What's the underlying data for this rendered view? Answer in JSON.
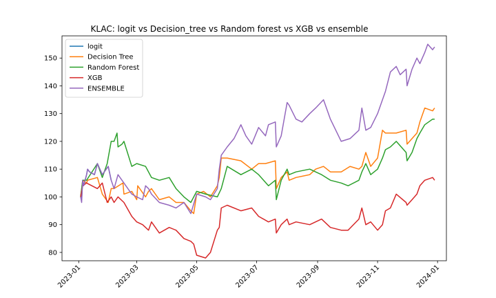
{
  "chart_data": {
    "type": "line",
    "title": "KLAC: logit vs Decision_tree vs Random forest vs XGB vs ensemble",
    "xlabel": "",
    "ylabel": "",
    "grid": false,
    "legend_placement": "top-left",
    "xlim": [
      "2022-12-15",
      "2024-01-10"
    ],
    "ylim": [
      77,
      158
    ],
    "x_ticks": [
      "2023-01-01",
      "2023-03-01",
      "2023-05-01",
      "2023-07-01",
      "2023-09-01",
      "2023-11-01",
      "2024-01-01"
    ],
    "x_tick_labels": [
      "2023-01",
      "2023-03",
      "2023-05",
      "2023-07",
      "2023-09",
      "2023-11",
      "2024-01"
    ],
    "y_ticks": [
      80,
      90,
      100,
      110,
      120,
      130,
      140,
      150
    ],
    "series": [
      {
        "name": "logit",
        "color": "#1f77b4",
        "x": [
          "2023-01-03",
          "2023-01-04",
          "2023-01-05",
          "2023-01-06",
          "2023-01-09",
          "2023-01-10",
          "2023-01-12",
          "2023-01-17",
          "2023-01-20",
          "2023-01-25",
          "2023-01-31",
          "2023-02-03"
        ],
        "y": [
          100,
          99,
          106,
          104,
          108,
          110,
          109,
          108,
          112,
          108,
          111,
          106
        ]
      },
      {
        "name": "Decision Tree",
        "color": "#ff7f0e",
        "x": [
          "2023-01-03",
          "2023-01-05",
          "2023-01-09",
          "2023-01-10",
          "2023-01-20",
          "2023-01-25",
          "2023-01-31",
          "2023-02-03",
          "2023-02-06",
          "2023-02-15",
          "2023-02-16",
          "2023-02-24",
          "2023-03-01",
          "2023-03-02",
          "2023-03-10",
          "2023-03-13",
          "2023-03-16",
          "2023-03-24",
          "2023-04-03",
          "2023-04-10",
          "2023-04-18",
          "2023-04-25",
          "2023-04-28",
          "2023-05-01",
          "2023-05-08",
          "2023-05-15",
          "2023-05-22",
          "2023-05-24",
          "2023-05-26",
          "2023-06-01",
          "2023-06-15",
          "2023-06-26",
          "2023-07-03",
          "2023-07-10",
          "2023-07-20",
          "2023-07-21",
          "2023-07-26",
          "2023-08-01",
          "2023-08-03",
          "2023-08-10",
          "2023-08-24",
          "2023-08-30",
          "2023-09-07",
          "2023-09-14",
          "2023-09-25",
          "2023-10-04",
          "2023-10-13",
          "2023-10-16",
          "2023-10-20",
          "2023-10-25",
          "2023-11-01",
          "2023-11-06",
          "2023-11-09",
          "2023-11-20",
          "2023-11-30",
          "2023-12-01",
          "2023-12-06",
          "2023-12-11",
          "2023-12-14",
          "2023-12-19",
          "2023-12-27",
          "2023-12-29"
        ],
        "y": [
          100,
          106,
          105,
          106,
          107,
          101,
          98,
          103,
          103,
          105,
          101,
          102,
          99,
          104,
          100,
          102,
          103,
          99,
          100,
          98,
          98,
          95,
          94,
          101,
          102,
          100,
          104,
          107,
          114,
          114,
          113,
          110,
          112,
          112,
          113,
          103,
          107,
          109,
          106,
          107,
          108,
          110,
          111,
          109,
          109,
          111,
          110,
          111,
          116,
          111,
          114,
          124,
          123,
          123,
          124,
          119,
          121,
          123,
          127,
          132,
          131,
          132
        ]
      },
      {
        "name": "Random Forest",
        "color": "#2ca02c",
        "x": [
          "2023-01-03",
          "2023-01-05",
          "2023-01-09",
          "2023-01-20",
          "2023-01-25",
          "2023-01-30",
          "2023-02-03",
          "2023-02-06",
          "2023-02-09",
          "2023-02-10",
          "2023-02-14",
          "2023-02-16",
          "2023-02-24",
          "2023-03-01",
          "2023-03-10",
          "2023-03-16",
          "2023-03-24",
          "2023-04-03",
          "2023-04-10",
          "2023-04-18",
          "2023-04-25",
          "2023-05-01",
          "2023-05-10",
          "2023-05-22",
          "2023-05-26",
          "2023-06-01",
          "2023-06-15",
          "2023-06-26",
          "2023-07-03",
          "2023-07-13",
          "2023-07-20",
          "2023-07-21",
          "2023-07-26",
          "2023-08-01",
          "2023-08-03",
          "2023-08-10",
          "2023-08-24",
          "2023-09-05",
          "2023-09-14",
          "2023-09-25",
          "2023-10-02",
          "2023-10-13",
          "2023-10-16",
          "2023-10-20",
          "2023-10-25",
          "2023-11-01",
          "2023-11-06",
          "2023-11-09",
          "2023-11-14",
          "2023-11-20",
          "2023-11-30",
          "2023-12-01",
          "2023-12-06",
          "2023-12-11",
          "2023-12-14",
          "2023-12-19",
          "2023-12-27",
          "2023-12-29"
        ],
        "y": [
          100,
          106,
          106,
          112,
          107,
          112,
          120,
          120,
          123,
          118,
          119,
          120,
          111,
          112,
          111,
          107,
          106,
          107,
          103,
          100,
          98,
          102,
          101,
          100,
          103,
          111,
          108,
          110,
          108,
          104,
          106,
          99,
          106,
          110,
          108,
          109,
          110,
          108,
          106,
          105,
          104,
          106,
          109,
          112,
          108,
          110,
          114,
          117,
          118,
          120,
          116,
          113,
          116,
          121,
          123,
          126,
          128,
          128
        ]
      },
      {
        "name": "XGB",
        "color": "#d62728",
        "x": [
          "2023-01-03",
          "2023-01-05",
          "2023-01-09",
          "2023-01-20",
          "2023-01-25",
          "2023-01-30",
          "2023-02-03",
          "2023-02-06",
          "2023-02-10",
          "2023-02-16",
          "2023-02-24",
          "2023-03-01",
          "2023-03-07",
          "2023-03-13",
          "2023-03-16",
          "2023-03-24",
          "2023-04-03",
          "2023-04-10",
          "2023-04-18",
          "2023-04-25",
          "2023-04-28",
          "2023-05-01",
          "2023-05-10",
          "2023-05-15",
          "2023-05-22",
          "2023-05-24",
          "2023-05-26",
          "2023-06-01",
          "2023-06-15",
          "2023-06-26",
          "2023-07-03",
          "2023-07-13",
          "2023-07-20",
          "2023-07-21",
          "2023-07-26",
          "2023-08-01",
          "2023-08-03",
          "2023-08-10",
          "2023-08-24",
          "2023-09-05",
          "2023-09-14",
          "2023-09-25",
          "2023-10-02",
          "2023-10-13",
          "2023-10-16",
          "2023-10-20",
          "2023-10-25",
          "2023-11-01",
          "2023-11-06",
          "2023-11-09",
          "2023-11-14",
          "2023-11-20",
          "2023-11-30",
          "2023-12-01",
          "2023-12-06",
          "2023-12-11",
          "2023-12-14",
          "2023-12-19",
          "2023-12-27",
          "2023-12-29"
        ],
        "y": [
          100,
          104,
          105,
          103,
          105,
          98,
          100,
          98,
          100,
          98,
          93,
          91,
          90,
          88,
          91,
          87,
          89,
          88,
          85,
          84,
          83,
          79,
          78,
          80,
          88,
          89,
          96,
          97,
          95,
          96,
          93,
          91,
          92,
          87,
          90,
          92,
          90,
          91,
          90,
          92,
          89,
          88,
          88,
          92,
          96,
          90,
          91,
          88,
          90,
          95,
          96,
          101,
          98,
          97,
          99,
          101,
          104,
          106,
          107,
          106
        ]
      },
      {
        "name": "ENSEMBLE",
        "color": "#9467bd",
        "x": [
          "2023-01-03",
          "2023-01-04",
          "2023-01-05",
          "2023-01-06",
          "2023-01-09",
          "2023-01-10",
          "2023-01-12",
          "2023-01-17",
          "2023-01-20",
          "2023-01-25",
          "2023-01-31",
          "2023-02-03",
          "2023-02-06",
          "2023-02-10",
          "2023-02-16",
          "2023-02-24",
          "2023-03-01",
          "2023-03-07",
          "2023-03-10",
          "2023-03-13",
          "2023-03-16",
          "2023-03-24",
          "2023-04-03",
          "2023-04-10",
          "2023-04-18",
          "2023-04-25",
          "2023-05-01",
          "2023-05-10",
          "2023-05-15",
          "2023-05-22",
          "2023-05-24",
          "2023-05-26",
          "2023-06-01",
          "2023-06-08",
          "2023-06-15",
          "2023-06-20",
          "2023-06-26",
          "2023-07-03",
          "2023-07-10",
          "2023-07-13",
          "2023-07-20",
          "2023-07-21",
          "2023-07-26",
          "2023-08-01",
          "2023-08-03",
          "2023-08-10",
          "2023-08-16",
          "2023-08-24",
          "2023-08-30",
          "2023-09-07",
          "2023-09-14",
          "2023-09-25",
          "2023-10-04",
          "2023-10-13",
          "2023-10-16",
          "2023-10-20",
          "2023-10-25",
          "2023-11-01",
          "2023-11-06",
          "2023-11-09",
          "2023-11-14",
          "2023-11-20",
          "2023-11-24",
          "2023-11-30",
          "2023-12-01",
          "2023-12-06",
          "2023-12-11",
          "2023-12-14",
          "2023-12-19",
          "2023-12-22",
          "2023-12-27",
          "2023-12-29"
        ],
        "y": [
          100,
          98,
          106,
          104,
          108,
          110,
          109,
          108,
          112,
          108,
          111,
          106,
          103,
          108,
          105,
          101,
          100,
          99,
          104,
          103,
          101,
          98,
          97,
          96,
          98,
          94,
          101,
          100,
          99,
          103,
          110,
          115,
          118,
          121,
          126,
          122,
          119,
          125,
          122,
          126,
          127,
          118,
          122,
          134,
          133,
          128,
          127,
          130,
          132,
          135,
          128,
          120,
          121,
          124,
          132,
          124,
          125,
          130,
          135,
          138,
          145,
          147,
          144,
          146,
          140,
          146,
          150,
          148,
          152,
          155,
          153,
          154
        ]
      }
    ]
  }
}
